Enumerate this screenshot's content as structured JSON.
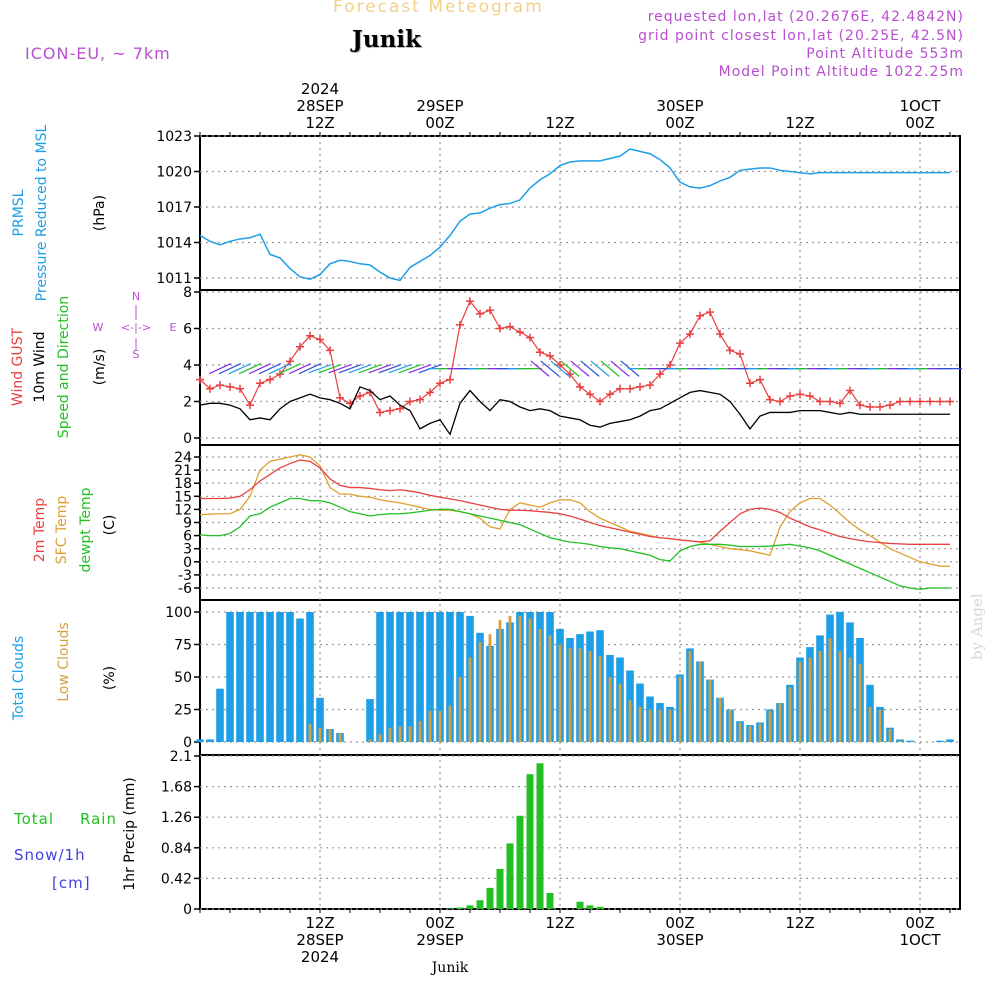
{
  "header": {
    "title": "Forecast Meteogram",
    "location": "Junik",
    "model": "ICON-EU, ~ 7km",
    "requested": "requested lon,lat (20.2676E, 42.4842N)",
    "grid": "grid point closest lon,lat (20.25E, 42.5N)",
    "point_alt": "Point Altitude 553m",
    "model_alt": "Model Point Altitude 1022.25m",
    "watermark": "by Angel",
    "footer_location": "Junik"
  },
  "colors": {
    "pressure": "#1e9ee6",
    "gust": "#e84040",
    "wind": "#000000",
    "temp2m": "#e84040",
    "sfc": "#e0a030",
    "dewpt": "#22c022",
    "total_clouds": "#1e9ee6",
    "low_clouds": "#d4a040",
    "rain": "#22c022",
    "snow": "#4040e0",
    "accent": "#b84fd0"
  },
  "time_axis": {
    "top_labels": [
      {
        "h": 12,
        "lines": [
          "2024",
          "28SEP",
          "12Z"
        ]
      },
      {
        "h": 24,
        "lines": [
          "29SEP",
          "00Z"
        ]
      },
      {
        "h": 36,
        "lines": [
          "12Z"
        ]
      },
      {
        "h": 48,
        "lines": [
          "30SEP",
          "00Z"
        ]
      },
      {
        "h": 60,
        "lines": [
          "12Z"
        ]
      },
      {
        "h": 72,
        "lines": [
          "1OCT",
          "00Z"
        ]
      }
    ],
    "bottom_labels": [
      {
        "h": 12,
        "lines": [
          "12Z",
          "28SEP",
          "2024"
        ]
      },
      {
        "h": 24,
        "lines": [
          "00Z",
          "29SEP"
        ]
      },
      {
        "h": 36,
        "lines": [
          "12Z"
        ]
      },
      {
        "h": 48,
        "lines": [
          "00Z",
          "30SEP"
        ]
      },
      {
        "h": 60,
        "lines": [
          "12Z"
        ]
      },
      {
        "h": 72,
        "lines": [
          "00Z",
          "1OCT"
        ]
      }
    ]
  },
  "chart_data": [
    {
      "type": "line",
      "title": "Pressure Reduced to MSL",
      "ylabels": [
        "PRMSL",
        "Pressure Reduced to MSL",
        "(hPa)"
      ],
      "ylim": [
        1010,
        1023
      ],
      "yticks": [
        1011,
        1014,
        1017,
        1020,
        1023
      ],
      "series": [
        {
          "name": "PRMSL",
          "x": [
            0,
            1,
            2,
            3,
            4,
            5,
            6,
            7,
            8,
            9,
            10,
            11,
            12,
            13,
            14,
            15,
            16,
            17,
            18,
            19,
            20,
            21,
            22,
            23,
            24,
            25,
            26,
            27,
            28,
            29,
            30,
            31,
            32,
            33,
            34,
            35,
            36,
            37,
            38,
            39,
            40,
            41,
            42,
            43,
            44,
            45,
            46,
            47,
            48,
            49,
            50,
            51,
            52,
            53,
            54,
            55,
            56,
            57,
            58,
            59,
            60,
            61,
            62,
            63,
            64,
            65,
            66,
            67,
            68,
            69,
            70,
            71,
            72,
            73,
            74,
            75
          ],
          "values": [
            1014.6,
            1014.1,
            1013.8,
            1014.1,
            1014.3,
            1014.4,
            1014.7,
            1013.0,
            1012.7,
            1011.8,
            1011.1,
            1010.9,
            1011.3,
            1012.2,
            1012.5,
            1012.4,
            1012.2,
            1012.1,
            1011.5,
            1011.0,
            1010.8,
            1011.9,
            1012.4,
            1012.9,
            1013.6,
            1014.6,
            1015.8,
            1016.4,
            1016.5,
            1016.9,
            1017.2,
            1017.3,
            1017.6,
            1018.6,
            1019.3,
            1019.8,
            1020.5,
            1020.8,
            1020.9,
            1020.9,
            1020.9,
            1021.1,
            1021.3,
            1021.9,
            1021.7,
            1021.5,
            1021.0,
            1020.3,
            1019.1,
            1018.7,
            1018.6,
            1018.8,
            1019.2,
            1019.5,
            1020.1,
            1020.2,
            1020.3,
            1020.3,
            1020.1,
            1020.0,
            1019.9,
            1019.8,
            1019.9,
            1019.9,
            1019.9,
            1019.9,
            1019.9,
            1019.9,
            1019.9,
            1019.9,
            1019.9,
            1019.9,
            1019.9,
            1019.9,
            1019.9,
            1019.9
          ]
        }
      ]
    },
    {
      "type": "line",
      "title": "Wind",
      "ylabels": [
        "Wind GUST",
        "10m Wind",
        "Speed and Direction",
        "(m/s)"
      ],
      "compass": {
        "n": "N",
        "s": "S",
        "w": "W",
        "e": "E",
        "arrow": "<-|->"
      },
      "ylim": [
        -0.2,
        8
      ],
      "yticks": [
        0,
        2,
        4,
        6,
        8
      ],
      "series": [
        {
          "name": "Wind GUST",
          "values": [
            3.2,
            2.7,
            2.9,
            2.8,
            2.7,
            1.8,
            3.0,
            3.2,
            3.5,
            4.2,
            5.0,
            5.6,
            5.4,
            4.8,
            2.2,
            1.9,
            2.3,
            2.5,
            1.4,
            1.5,
            1.6,
            2.0,
            2.1,
            2.5,
            3.0,
            3.2,
            6.2,
            7.5,
            6.8,
            7.0,
            6.0,
            6.1,
            5.8,
            5.5,
            4.7,
            4.5,
            4.0,
            3.5,
            2.8,
            2.4,
            2.0,
            2.4,
            2.7,
            2.7,
            2.8,
            2.9,
            3.5,
            4.0,
            5.2,
            5.7,
            6.7,
            6.9,
            5.7,
            4.8,
            4.6,
            3.0,
            3.2,
            2.1,
            2.0,
            2.3,
            2.4,
            2.3,
            2.0,
            2.0,
            1.9,
            2.6,
            1.8,
            1.7,
            1.7,
            1.8,
            2.0,
            2.0,
            2.0,
            2.0,
            2.0,
            2.0
          ]
        },
        {
          "name": "10m Wind",
          "values": [
            1.8,
            1.9,
            1.9,
            1.8,
            1.6,
            1.0,
            1.1,
            1.0,
            1.6,
            2.0,
            2.2,
            2.4,
            2.2,
            2.1,
            1.9,
            1.6,
            2.8,
            2.6,
            2.1,
            2.3,
            1.8,
            1.5,
            0.5,
            0.8,
            1.0,
            0.2,
            1.9,
            2.6,
            2.0,
            1.5,
            2.1,
            2.0,
            1.7,
            1.5,
            1.6,
            1.5,
            1.2,
            1.1,
            1.0,
            0.7,
            0.6,
            0.8,
            0.9,
            1.0,
            1.2,
            1.5,
            1.6,
            1.9,
            2.2,
            2.5,
            2.6,
            2.5,
            2.4,
            2.0,
            1.3,
            0.5,
            1.2,
            1.4,
            1.4,
            1.4,
            1.5,
            1.5,
            1.5,
            1.4,
            1.3,
            1.4,
            1.3,
            1.3,
            1.3,
            1.3,
            1.3,
            1.3,
            1.3,
            1.3,
            1.3,
            1.3
          ]
        }
      ]
    },
    {
      "type": "line",
      "title": "Temperature",
      "ylabels": [
        "2m Temp",
        "SFC Temp",
        "dewpt Temp",
        "(C)"
      ],
      "ylim": [
        -8,
        26
      ],
      "yticks": [
        -6,
        -3,
        0,
        3,
        6,
        9,
        12,
        15,
        18,
        21,
        24
      ],
      "series": [
        {
          "name": "2m Temp",
          "values": [
            14.5,
            14.5,
            14.5,
            14.6,
            15.0,
            16.5,
            18.5,
            20.0,
            21.5,
            22.5,
            23.3,
            23.0,
            21.5,
            19.0,
            17.5,
            17.0,
            17.0,
            16.8,
            16.5,
            16.3,
            16.5,
            16.2,
            15.8,
            15.2,
            14.8,
            14.4,
            14.0,
            13.5,
            13.0,
            12.5,
            12.0,
            11.8,
            11.8,
            11.7,
            11.5,
            11.3,
            11.0,
            10.5,
            9.8,
            9.0,
            8.3,
            7.8,
            7.3,
            6.8,
            6.3,
            5.8,
            5.5,
            5.3,
            5.0,
            4.8,
            4.6,
            4.8,
            7.0,
            9.0,
            11.0,
            12.0,
            12.3,
            12.0,
            11.3,
            10.0,
            9.0,
            8.0,
            7.3,
            6.5,
            5.8,
            5.3,
            4.9,
            4.6,
            4.4,
            4.2,
            4.1,
            4.0,
            4.0,
            4.0,
            4.0,
            4.0
          ]
        },
        {
          "name": "SFC Temp",
          "values": [
            10.8,
            10.9,
            11.0,
            11.0,
            12.0,
            15.0,
            21.0,
            23.0,
            23.5,
            24.0,
            24.5,
            24.0,
            22.0,
            17.0,
            15.5,
            15.5,
            15.0,
            14.8,
            14.2,
            13.8,
            13.5,
            13.0,
            12.5,
            12.0,
            11.8,
            11.8,
            11.5,
            11.0,
            10.0,
            8.0,
            7.5,
            12.0,
            13.5,
            13.0,
            12.5,
            13.5,
            14.2,
            14.2,
            13.5,
            11.5,
            10.0,
            9.0,
            8.0,
            7.0,
            6.5,
            6.0,
            5.5,
            5.3,
            5.0,
            4.8,
            4.5,
            4.0,
            3.5,
            3.0,
            2.8,
            2.5,
            2.0,
            1.5,
            8.0,
            11.5,
            13.5,
            14.5,
            14.5,
            13.0,
            11.0,
            9.0,
            7.3,
            6.0,
            4.5,
            3.0,
            2.0,
            1.0,
            0.0,
            -0.5,
            -1.0,
            -1.0
          ]
        },
        {
          "name": "dewpt Temp",
          "values": [
            6.2,
            6.0,
            6.0,
            6.5,
            8.0,
            10.5,
            11.0,
            12.5,
            13.5,
            14.5,
            14.5,
            14.0,
            14.0,
            13.5,
            12.5,
            11.5,
            11.0,
            10.5,
            10.8,
            11.0,
            11.0,
            11.2,
            11.5,
            11.8,
            12.0,
            12.0,
            11.5,
            11.0,
            10.5,
            10.0,
            9.5,
            9.0,
            8.5,
            7.5,
            6.5,
            5.5,
            5.0,
            4.5,
            4.3,
            4.0,
            3.5,
            3.2,
            3.0,
            2.5,
            2.0,
            1.5,
            0.5,
            0.2,
            2.5,
            3.5,
            4.0,
            4.0,
            4.0,
            3.8,
            3.5,
            3.5,
            3.5,
            3.6,
            3.8,
            4.0,
            3.6,
            3.2,
            2.5,
            1.5,
            0.5,
            -0.5,
            -1.5,
            -2.5,
            -3.5,
            -4.5,
            -5.5,
            -6.0,
            -6.3,
            -6.0,
            -6.0,
            -6.0
          ]
        }
      ]
    },
    {
      "type": "bar",
      "title": "Clouds",
      "ylabels": [
        "Total Clouds",
        "Low Clouds",
        "(%)"
      ],
      "ylim": [
        0,
        105
      ],
      "yticks": [
        0,
        25,
        50,
        75,
        100
      ],
      "series": [
        {
          "name": "Total Clouds",
          "values": [
            2,
            2,
            41,
            100,
            100,
            100,
            100,
            100,
            100,
            100,
            95,
            100,
            34,
            10,
            7,
            0,
            0,
            33,
            100,
            100,
            100,
            100,
            100,
            100,
            100,
            100,
            100,
            97,
            84,
            74,
            87,
            92,
            100,
            100,
            100,
            100,
            87,
            80,
            83,
            85,
            86,
            67,
            65,
            55,
            45,
            35,
            30,
            27,
            52,
            72,
            62,
            48,
            34,
            25,
            16,
            13,
            15,
            25,
            30,
            44,
            65,
            73,
            82,
            98,
            100,
            92,
            80,
            44,
            27,
            11,
            2,
            1,
            0,
            0,
            1,
            2
          ]
        },
        {
          "name": "Low Clouds",
          "values": [
            0,
            0,
            0,
            0,
            0,
            0,
            0,
            0,
            0,
            0,
            0,
            14,
            11,
            10,
            7,
            0,
            0,
            2,
            6,
            11,
            12,
            12,
            16,
            24,
            24,
            28,
            50,
            65,
            77,
            83,
            94,
            97,
            97,
            95,
            87,
            82,
            75,
            72,
            72,
            70,
            66,
            50,
            45,
            32,
            27,
            25,
            25,
            25,
            50,
            70,
            62,
            48,
            34,
            25,
            15,
            12,
            14,
            24,
            30,
            42,
            62,
            65,
            70,
            80,
            70,
            65,
            60,
            27,
            25,
            10,
            1,
            0,
            0,
            0,
            0,
            0
          ]
        }
      ]
    },
    {
      "type": "bar",
      "title": "1hr Precip",
      "ylabels": [
        "Total Rain",
        "Snow/1h",
        "[cm]",
        "1hr Precip (mm)"
      ],
      "ylim": [
        0,
        2.1
      ],
      "yticks": [
        "0",
        "0.42",
        "0.84",
        "1.26",
        "1.68",
        "2.1"
      ],
      "series": [
        {
          "name": "Total Rain",
          "values": [
            0,
            0,
            0,
            0,
            0,
            0,
            0,
            0,
            0,
            0,
            0,
            0,
            0,
            0,
            0,
            0,
            0,
            0,
            0,
            0,
            0,
            0,
            0,
            0,
            0,
            0.01,
            0.02,
            0.05,
            0.12,
            0.29,
            0.55,
            0.9,
            1.28,
            1.85,
            2.0,
            0.22,
            0,
            0,
            0.1,
            0.05,
            0.03,
            0,
            0,
            0,
            0,
            0,
            0,
            0,
            0,
            0,
            0,
            0,
            0,
            0,
            0,
            0,
            0,
            0,
            0,
            0,
            0,
            0,
            0,
            0,
            0,
            0,
            0,
            0,
            0,
            0,
            0,
            0,
            0,
            0,
            0,
            0
          ]
        }
      ]
    }
  ]
}
